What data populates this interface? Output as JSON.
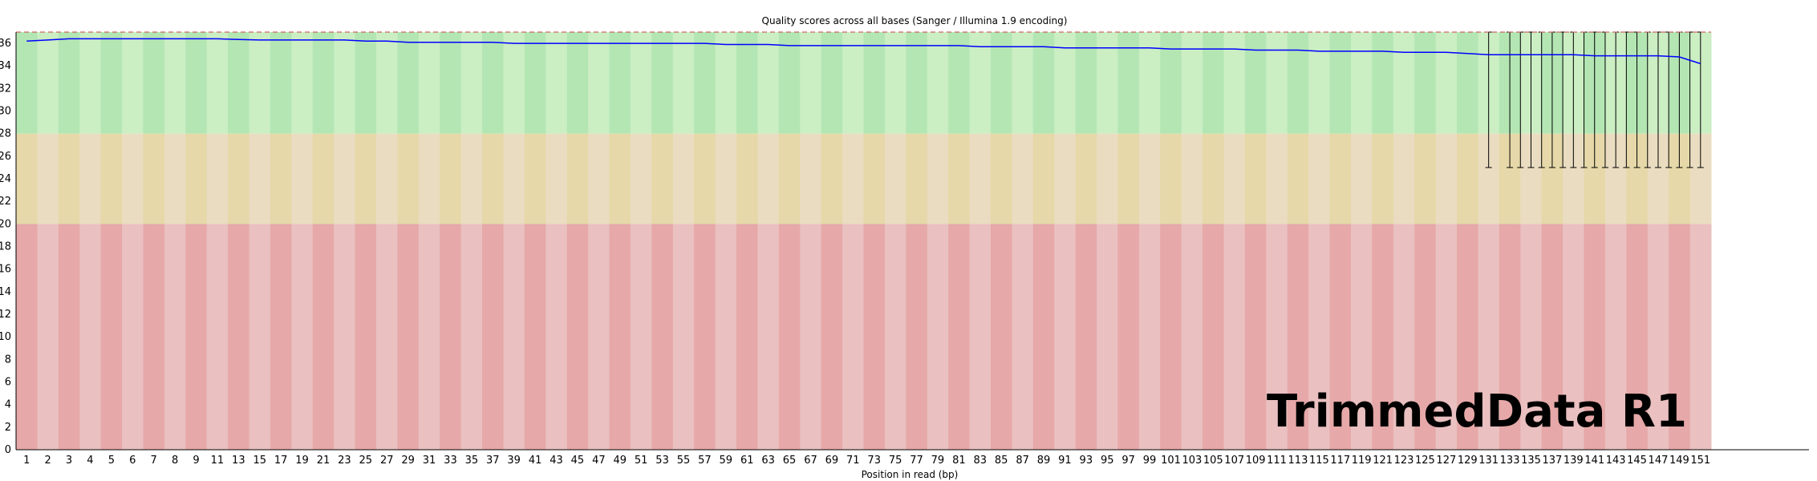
{
  "chart_data": {
    "type": "line",
    "title": "Quality scores across all bases (Sanger / Illumina 1.9 encoding)",
    "xlabel": "Position in read (bp)",
    "ylabel": "",
    "ylim": [
      0,
      37
    ],
    "y_ticks": [
      0,
      2,
      4,
      6,
      8,
      10,
      12,
      14,
      16,
      18,
      20,
      22,
      24,
      26,
      28,
      30,
      32,
      34,
      36
    ],
    "x_tick_labels": [
      "1",
      "2",
      "3",
      "4",
      "5",
      "6",
      "7",
      "8",
      "9",
      "11",
      "13",
      "15",
      "17",
      "19",
      "21",
      "23",
      "25",
      "27",
      "29",
      "31",
      "33",
      "35",
      "37",
      "39",
      "41",
      "43",
      "45",
      "47",
      "49",
      "51",
      "53",
      "55",
      "57",
      "59",
      "61",
      "63",
      "65",
      "67",
      "69",
      "71",
      "73",
      "75",
      "77",
      "79",
      "81",
      "83",
      "85",
      "87",
      "89",
      "91",
      "93",
      "95",
      "97",
      "99",
      "101",
      "103",
      "105",
      "107",
      "109",
      "111",
      "113",
      "115",
      "117",
      "119",
      "121",
      "123",
      "125",
      "127",
      "129",
      "131",
      "133",
      "135",
      "137",
      "139",
      "141",
      "143",
      "145",
      "147",
      "149",
      "151"
    ],
    "quality_bands": [
      {
        "from": 28,
        "to": 37,
        "color": "#b3e6b3",
        "alt_color": "#cbeec3"
      },
      {
        "from": 20,
        "to": 28,
        "color": "#e6d8a8",
        "alt_color": "#eadcc0"
      },
      {
        "from": 0,
        "to": 20,
        "color": "#e6a8a8",
        "alt_color": "#eac0c0"
      }
    ],
    "series": [
      {
        "color": "#0000ff",
        "x": [
          1,
          2,
          3,
          4,
          5,
          6,
          7,
          8,
          9,
          11,
          13,
          15,
          17,
          19,
          21,
          23,
          25,
          27,
          29,
          31,
          33,
          35,
          37,
          39,
          41,
          43,
          45,
          47,
          49,
          51,
          53,
          55,
          57,
          59,
          61,
          63,
          65,
          67,
          69,
          71,
          73,
          75,
          77,
          79,
          81,
          83,
          85,
          87,
          89,
          91,
          93,
          95,
          97,
          99,
          101,
          103,
          105,
          107,
          109,
          111,
          113,
          115,
          117,
          119,
          121,
          123,
          125,
          127,
          129,
          131,
          133,
          135,
          137,
          139,
          141,
          143,
          145,
          147,
          149,
          151
        ],
        "values": [
          36.2,
          36.3,
          36.4,
          36.4,
          36.4,
          36.4,
          36.4,
          36.4,
          36.4,
          36.4,
          36.35,
          36.3,
          36.3,
          36.3,
          36.3,
          36.3,
          36.2,
          36.2,
          36.1,
          36.1,
          36.1,
          36.1,
          36.1,
          36.0,
          36.0,
          36.0,
          36.0,
          36.0,
          36.0,
          36.0,
          36.0,
          36.0,
          36.0,
          35.9,
          35.9,
          35.9,
          35.8,
          35.8,
          35.8,
          35.8,
          35.8,
          35.8,
          35.8,
          35.8,
          35.8,
          35.7,
          35.7,
          35.7,
          35.7,
          35.6,
          35.6,
          35.6,
          35.6,
          35.6,
          35.5,
          35.5,
          35.5,
          35.5,
          35.4,
          35.4,
          35.4,
          35.3,
          35.3,
          35.3,
          35.3,
          35.2,
          35.2,
          35.2,
          35.1,
          35.0,
          35.0,
          35.0,
          35.0,
          35.0,
          34.9,
          34.9,
          34.9,
          34.9,
          34.8,
          34.2
        ]
      }
    ],
    "whiskers": [
      {
        "x": 131,
        "low": 25,
        "high": 37
      },
      {
        "x": 133,
        "low": 25,
        "high": 37
      },
      {
        "x": 134,
        "low": 25,
        "high": 37
      },
      {
        "x": 135,
        "low": 25,
        "high": 37
      },
      {
        "x": 136,
        "low": 25,
        "high": 37
      },
      {
        "x": 137,
        "low": 25,
        "high": 37
      },
      {
        "x": 138,
        "low": 25,
        "high": 37
      },
      {
        "x": 139,
        "low": 25,
        "high": 37
      },
      {
        "x": 140,
        "low": 25,
        "high": 37
      },
      {
        "x": 141,
        "low": 25,
        "high": 37
      },
      {
        "x": 142,
        "low": 25,
        "high": 37
      },
      {
        "x": 143,
        "low": 25,
        "high": 37
      },
      {
        "x": 144,
        "low": 25,
        "high": 37
      },
      {
        "x": 145,
        "low": 25,
        "high": 37
      },
      {
        "x": 146,
        "low": 25,
        "high": 37
      },
      {
        "x": 147,
        "low": 25,
        "high": 37
      },
      {
        "x": 148,
        "low": 25,
        "high": 37
      },
      {
        "x": 149,
        "low": 25,
        "high": 37
      },
      {
        "x": 150,
        "low": 25,
        "high": 37
      },
      {
        "x": 151,
        "low": 25,
        "high": 37
      }
    ],
    "grid": false,
    "watermark": "TrimmedData R1"
  }
}
